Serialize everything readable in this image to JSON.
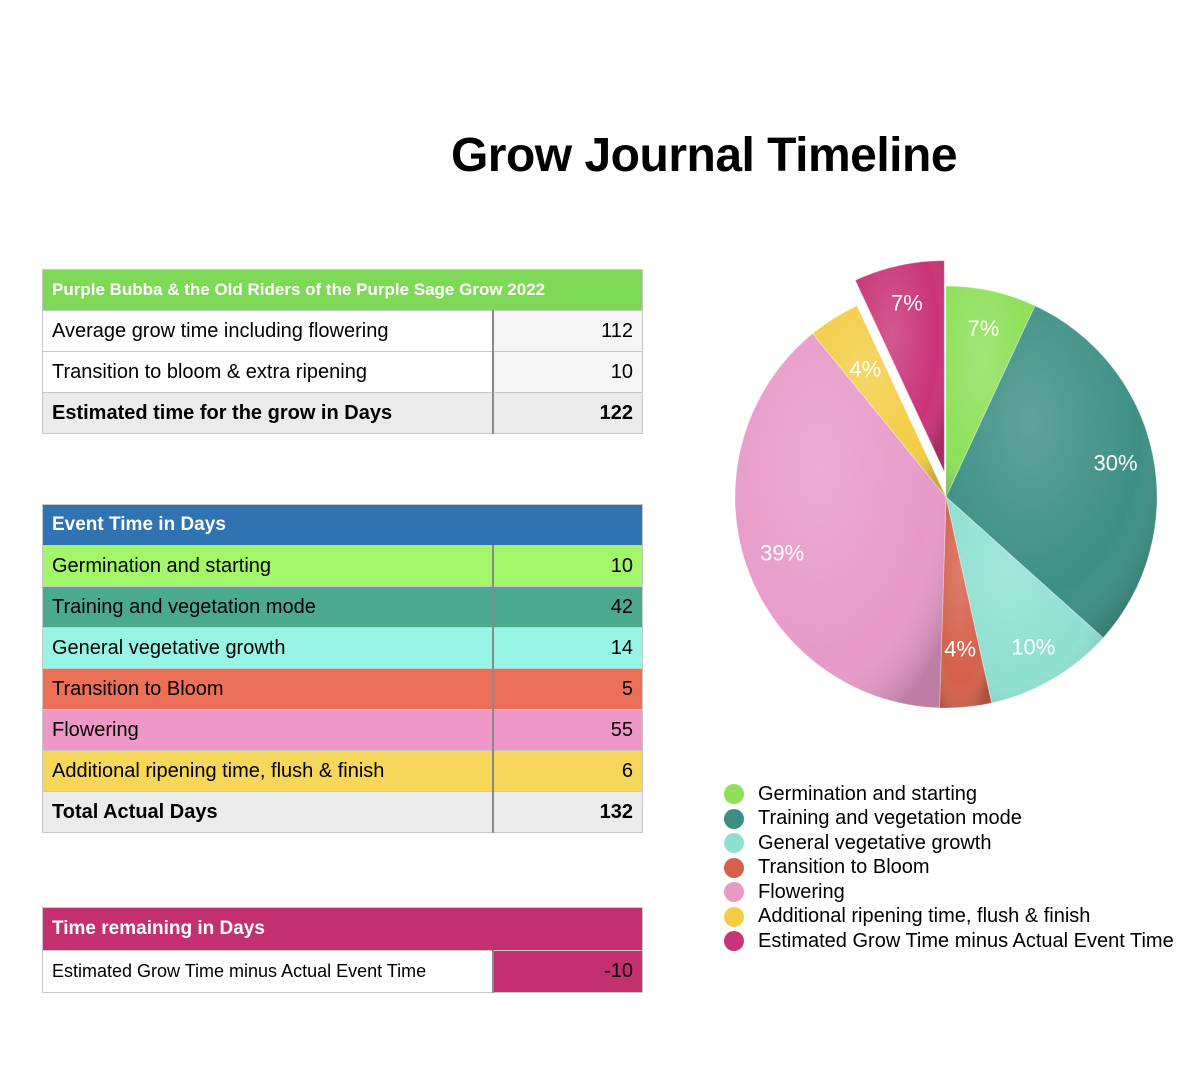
{
  "title": "Grow Journal Timeline",
  "summary_table": {
    "header": "Purple Bubba & the Old Riders of the Purple Sage Grow 2022",
    "rows": [
      {
        "label": "Average grow time including flowering",
        "value": "112"
      },
      {
        "label": "Transition to bloom & extra ripening",
        "value": "10"
      }
    ],
    "total": {
      "label": "Estimated time for the grow in Days",
      "value": "122"
    }
  },
  "event_table": {
    "header": "Event Time in Days",
    "rows": [
      {
        "label": "Germination and starting",
        "value": "10",
        "color": "#a3f56a"
      },
      {
        "label": "Training and vegetation mode",
        "value": "42",
        "color": "#4aa98f"
      },
      {
        "label": "General vegetative growth",
        "value": "14",
        "color": "#98f5e6"
      },
      {
        "label": "Transition to Bloom",
        "value": "5",
        "color": "#ec6f58"
      },
      {
        "label": "Flowering",
        "value": "55",
        "color": "#ef97c6"
      },
      {
        "label": "Additional ripening time, flush & finish",
        "value": "6",
        "color": "#f7d75a"
      }
    ],
    "total": {
      "label": "Total Actual Days",
      "value": "132"
    }
  },
  "remaining_table": {
    "header": "Time remaining in Days",
    "row": {
      "label": "Estimated Grow Time minus Actual Event Time",
      "value": "-10"
    }
  },
  "chart_data": {
    "type": "pie",
    "slices": [
      {
        "name": "Germination and starting",
        "percent": 7,
        "label": "7%",
        "color": "#8ee05a"
      },
      {
        "name": "Training and vegetation mode",
        "percent": 30,
        "label": "30%",
        "color": "#3d8f84"
      },
      {
        "name": "General vegetative growth",
        "percent": 10,
        "label": "10%",
        "color": "#8fe0d2"
      },
      {
        "name": "Transition to Bloom",
        "percent": 4,
        "label": "4%",
        "color": "#d4614b"
      },
      {
        "name": "Flowering",
        "percent": 39,
        "label": "39%",
        "color": "#e79ac8"
      },
      {
        "name": "Additional ripening time, flush & finish",
        "percent": 4,
        "label": "4%",
        "color": "#f3cd45"
      },
      {
        "name": "Estimated Grow Time minus Actual Event Time",
        "percent": 7,
        "label": "7%",
        "color": "#c93477",
        "exploded": true
      }
    ],
    "legend_placement": "bottom"
  }
}
